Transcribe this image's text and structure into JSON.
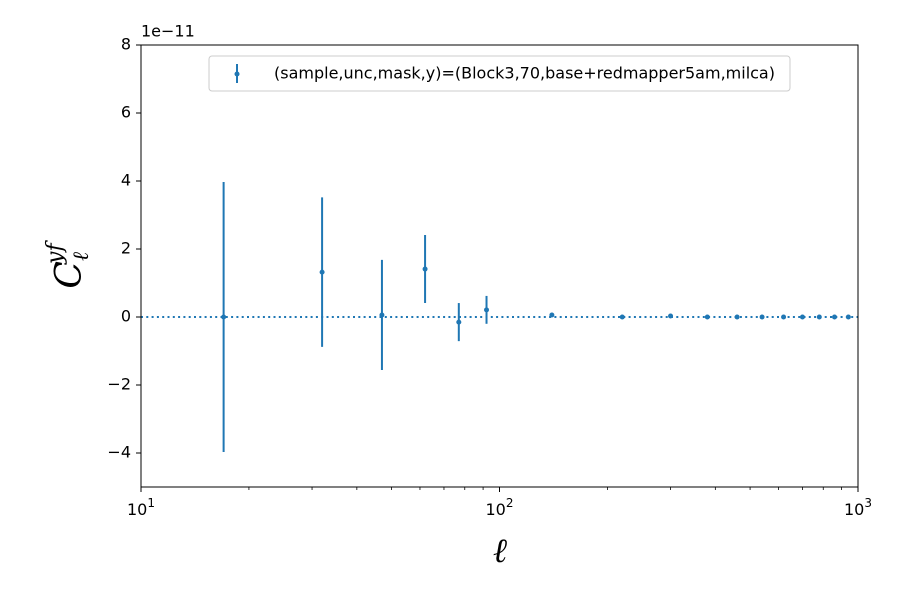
{
  "chart_data": {
    "type": "errorbar",
    "offset_text": "1e−11",
    "xlabel": "ℓ",
    "ylabel": "C",
    "ylabel_sub": "ℓ",
    "ylabel_sup": "yf",
    "log_x": true,
    "xlim": [
      10,
      1000
    ],
    "xticks": [
      {
        "value": 10,
        "label": "10",
        "exponent": "1"
      },
      {
        "value": 100,
        "label": "10",
        "exponent": "2"
      },
      {
        "value": 1000,
        "label": "10",
        "exponent": "3"
      }
    ],
    "ylim": [
      -5,
      8
    ],
    "yticks": [
      {
        "value": -4,
        "label": "−4"
      },
      {
        "value": -2,
        "label": "−2"
      },
      0,
      2,
      4,
      6,
      8
    ],
    "hline": 0,
    "legend": "upper center",
    "series": [
      {
        "name": "(sample,unc,mask,y)=(Block3,70,base+redmapper5am,milca)",
        "color": "#1f77b4",
        "x": [
          17,
          32,
          47,
          62,
          77,
          92,
          140,
          220,
          300,
          380,
          460,
          540,
          620,
          700,
          780,
          860,
          940
        ],
        "values": [
          0.0,
          1.32,
          0.06,
          1.41,
          -0.15,
          0.21,
          0.06,
          0.0,
          0.03,
          0.0,
          0.0,
          0.0,
          0.0,
          0.0,
          0.0,
          0.0,
          0.0
        ],
        "errors": [
          3.97,
          2.2,
          1.62,
          1.0,
          0.56,
          0.41,
          0.05,
          0.03,
          0.03,
          0.02,
          0.02,
          0.02,
          0.02,
          0.02,
          0.02,
          0.02,
          0.02
        ]
      }
    ]
  }
}
